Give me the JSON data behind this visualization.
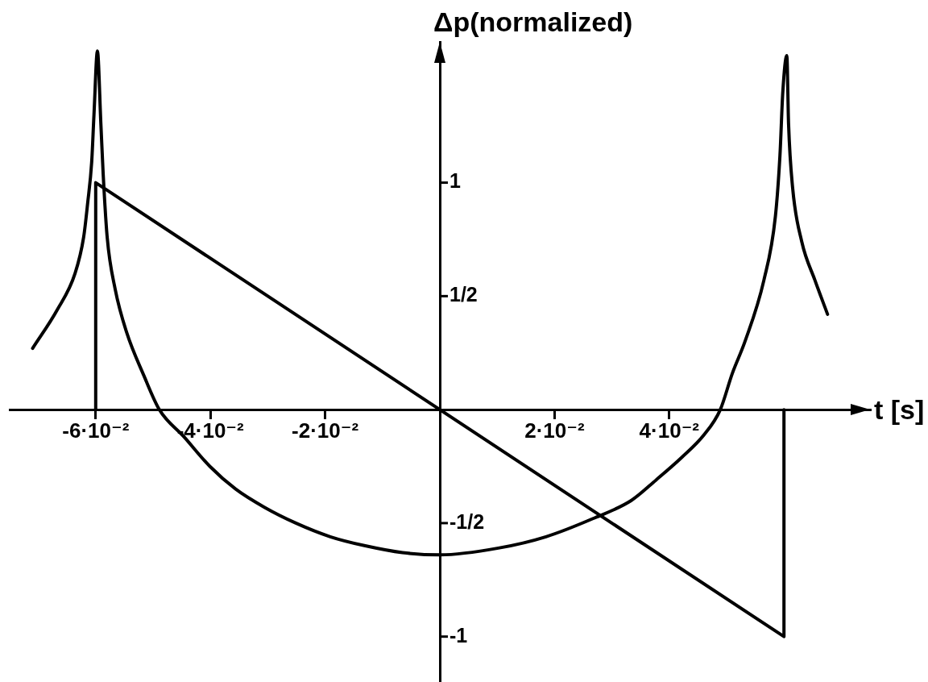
{
  "chart_data": {
    "type": "line",
    "xlabel": "t [s]",
    "ylabel": "Δp(normalized)",
    "xlim": [
      -0.075,
      0.075
    ],
    "ylim": [
      -1.2,
      1.62
    ],
    "xticks": [
      {
        "value": -0.06,
        "label": "-6·10⁻²"
      },
      {
        "value": -0.04,
        "label": "-4·10⁻²"
      },
      {
        "value": -0.02,
        "label": "-2·10⁻²"
      },
      {
        "value": 0.02,
        "label": "2·10⁻²"
      },
      {
        "value": 0.04,
        "label": "4·10⁻²"
      }
    ],
    "yticks": [
      -1,
      {
        "value": -0.5,
        "label": "-1/2"
      },
      {
        "value": 0.5,
        "label": "1/2"
      },
      1
    ],
    "marker": "none",
    "line_style": "solid",
    "series": [
      {
        "color": "#000000",
        "x": [
          -0.06,
          -0.06,
          0.06,
          0.06
        ],
        "values": [
          0,
          1,
          -1,
          0
        ]
      },
      {
        "color": "#000000",
        "x": [
          -0.071,
          -0.0667,
          -0.0636,
          -0.0621,
          -0.0614,
          -0.0607,
          -0.0603,
          -0.0597,
          -0.0591,
          -0.0587,
          -0.058,
          -0.0566,
          -0.0546,
          -0.0516,
          -0.0489,
          -0.0446,
          -0.0401,
          -0.0356,
          -0.0306,
          -0.0251,
          -0.0191,
          -0.013,
          -0.0065,
          0,
          0.0102,
          0.0185,
          0.0267,
          0.0334,
          0.0377,
          0.0422,
          0.0461,
          0.0489,
          0.051,
          0.0532,
          0.0565,
          0.0585,
          0.0593,
          0.0598,
          0.0605,
          0.0608,
          0.0615,
          0.0631,
          0.0654,
          0.0676
        ],
        "values": [
          0.27,
          0.44,
          0.6,
          0.76,
          0.91,
          1.09,
          1.3,
          1.58,
          1.26,
          1.04,
          0.76,
          0.53,
          0.34,
          0.15,
          0,
          -0.12,
          -0.25,
          -0.35,
          -0.43,
          -0.5,
          -0.56,
          -0.6,
          -0.63,
          -0.64,
          -0.61,
          -0.56,
          -0.48,
          -0.4,
          -0.31,
          -0.21,
          -0.11,
          0,
          0.16,
          0.3,
          0.57,
          0.85,
          1.12,
          1.4,
          1.56,
          1.26,
          0.98,
          0.74,
          0.57,
          0.42
        ]
      }
    ]
  }
}
